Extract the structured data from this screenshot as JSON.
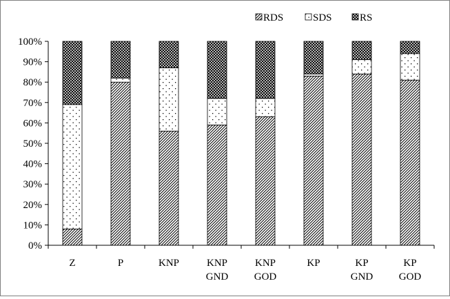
{
  "chart_data": {
    "type": "bar",
    "stacked": true,
    "percent": true,
    "title": "",
    "xlabel": "",
    "ylabel": "",
    "ylim": [
      0,
      100
    ],
    "yticks": [
      "0%",
      "10%",
      "20%",
      "30%",
      "40%",
      "50%",
      "60%",
      "70%",
      "80%",
      "90%",
      "100%"
    ],
    "categories": [
      [
        "Z"
      ],
      [
        "P"
      ],
      [
        "KNP"
      ],
      [
        "KNP",
        "GND"
      ],
      [
        "KNP",
        "GOD"
      ],
      [
        "KP"
      ],
      [
        "KP",
        "GND"
      ],
      [
        "KP",
        "GOD"
      ]
    ],
    "series": [
      {
        "name": "RDS",
        "pattern": "diagonal-hatch",
        "values": [
          8,
          80,
          56,
          59,
          63,
          83,
          84,
          81
        ]
      },
      {
        "name": "SDS",
        "pattern": "dots",
        "values": [
          61,
          2,
          31,
          13,
          9,
          1,
          7,
          13
        ]
      },
      {
        "name": "RS",
        "pattern": "crosshatch",
        "values": [
          31,
          18,
          13,
          28,
          28,
          16,
          9,
          6
        ]
      }
    ],
    "legend_position": "top-right",
    "grid": false
  }
}
